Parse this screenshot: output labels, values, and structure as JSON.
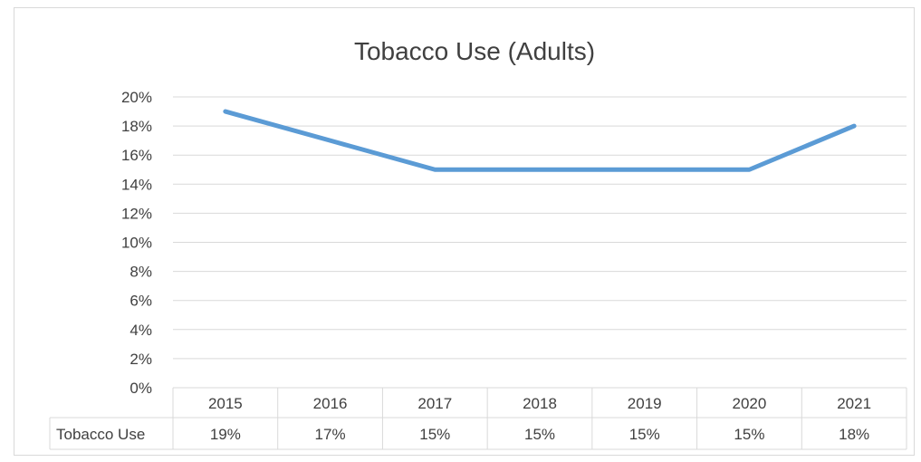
{
  "chart_data": {
    "type": "line",
    "title": "Tobacco Use (Adults)",
    "categories": [
      "2015",
      "2016",
      "2017",
      "2018",
      "2019",
      "2020",
      "2021"
    ],
    "series": [
      {
        "name": "Tobacco Use",
        "values": [
          0.19,
          0.17,
          0.15,
          0.15,
          0.15,
          0.15,
          0.18
        ],
        "value_labels": [
          "19%",
          "17%",
          "15%",
          "15%",
          "15%",
          "15%",
          "18%"
        ]
      }
    ],
    "y_ticks": [
      "0%",
      "2%",
      "4%",
      "6%",
      "8%",
      "10%",
      "12%",
      "14%",
      "16%",
      "18%",
      "20%"
    ],
    "ylim": [
      0,
      0.2
    ],
    "grid": true,
    "legend": "data-table",
    "data_table": true,
    "colors": {
      "line": "#5B9BD5",
      "grid": "#d9d9d9",
      "text": "#404040",
      "title": "#404040"
    }
  }
}
